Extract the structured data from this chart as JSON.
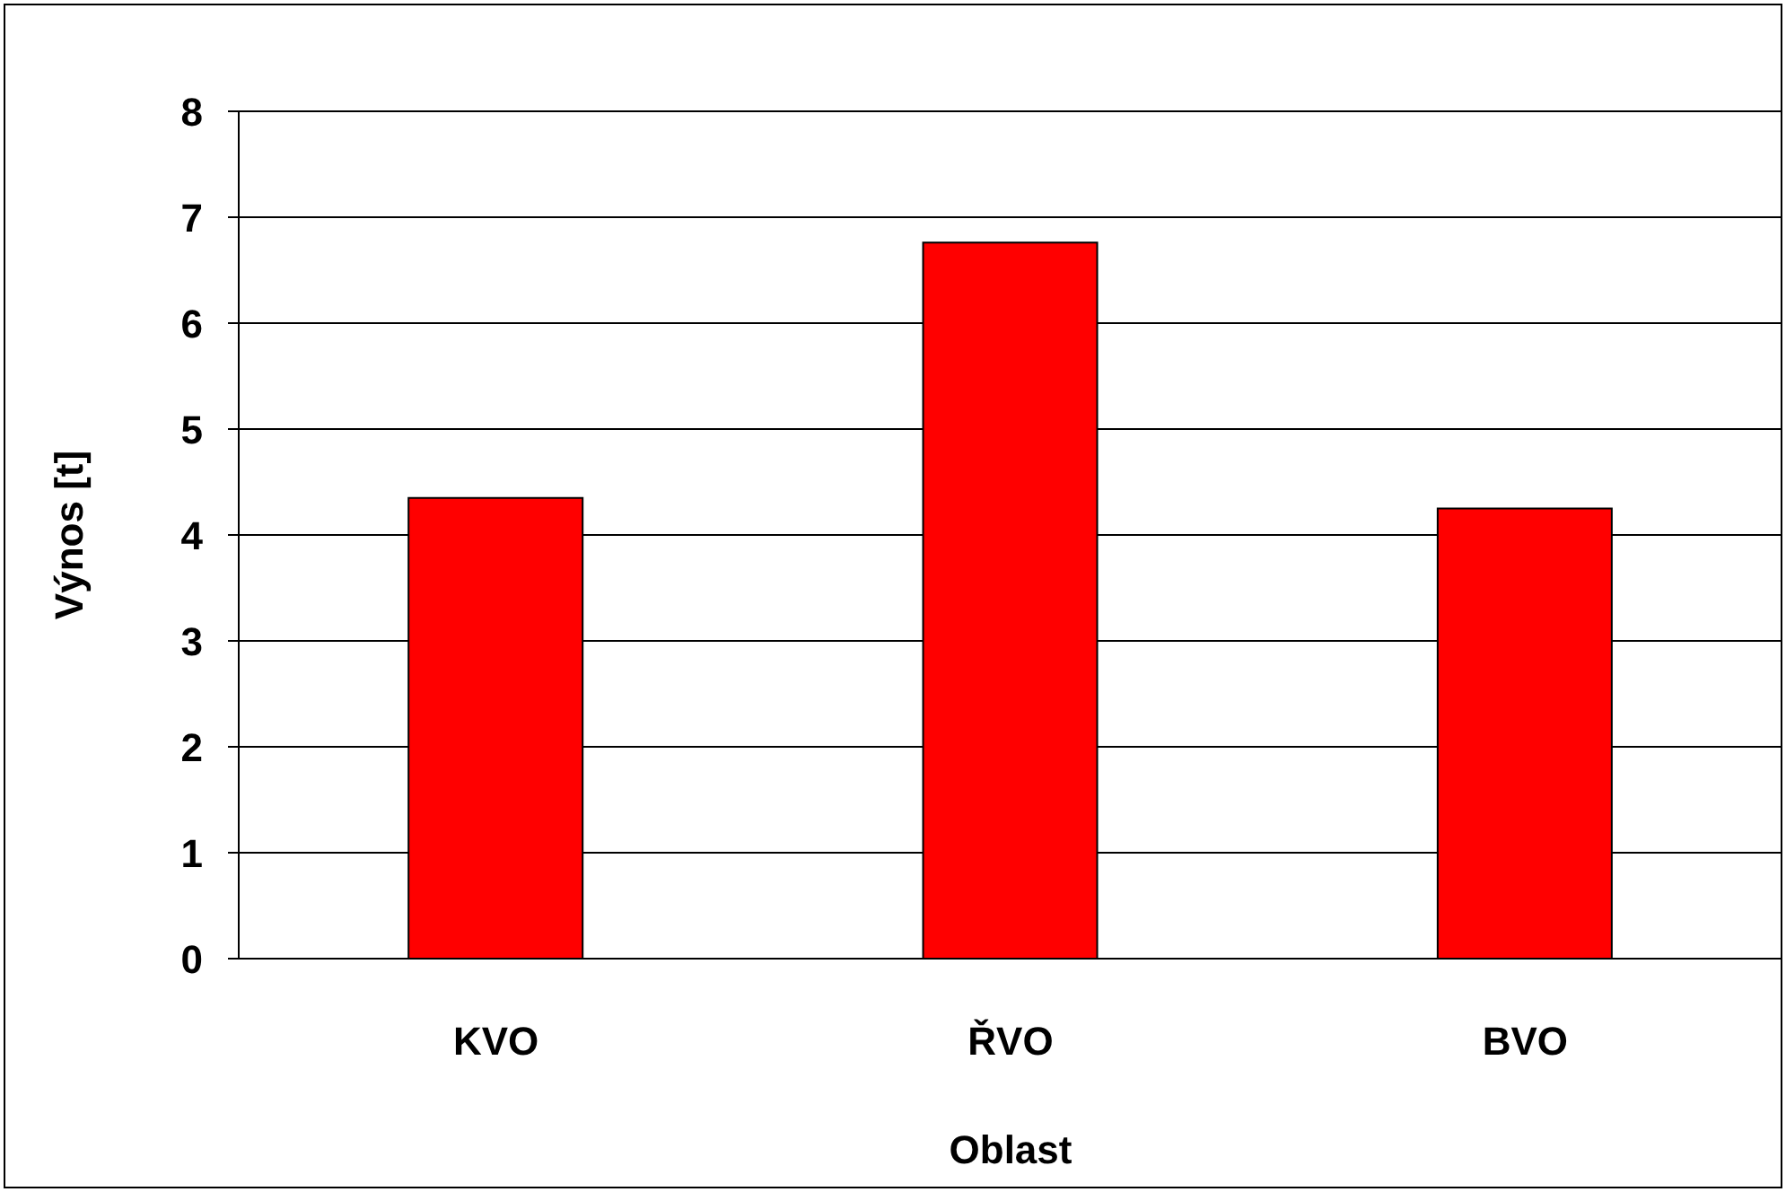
{
  "chart_data": {
    "type": "bar",
    "xlabel": "Oblast",
    "ylabel": "Výnos [t]",
    "categories": [
      "KVO",
      "ŘVO",
      "BVO"
    ],
    "values": [
      4.35,
      6.76,
      4.25
    ],
    "color": "#ff0000",
    "ylim": [
      0,
      8
    ],
    "yticks": [
      0,
      1,
      2,
      3,
      4,
      5,
      6,
      7,
      8
    ],
    "grid": "y",
    "legend": false
  }
}
